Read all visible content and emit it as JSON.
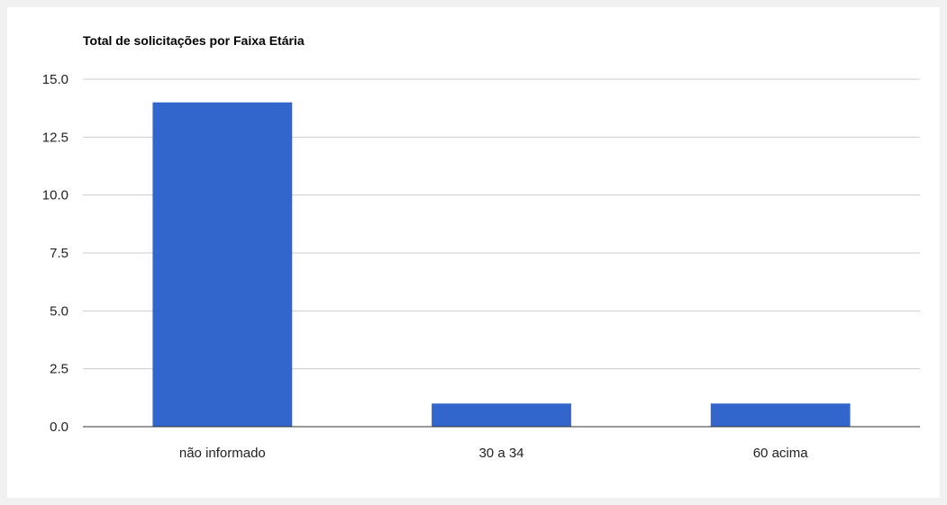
{
  "chart_data": {
    "type": "bar",
    "title": "Total de solicitações por Faixa Etária",
    "categories": [
      "não informado",
      "30 a 34",
      "60 acima"
    ],
    "values": [
      14,
      1,
      1
    ],
    "ylim": [
      0,
      15
    ],
    "yticks": [
      "0.0",
      "2.5",
      "5.0",
      "7.5",
      "10.0",
      "12.5",
      "15.0"
    ],
    "ytick_values": [
      0,
      2.5,
      5,
      7.5,
      10,
      12.5,
      15
    ],
    "xlabel": "",
    "ylabel": "",
    "grid": true,
    "legend": "none",
    "colors": {
      "bar": "#3366cc",
      "grid": "#cccccc",
      "baseline": "#333333",
      "background": "#ffffff",
      "page_background": "#f1f1f1"
    }
  }
}
